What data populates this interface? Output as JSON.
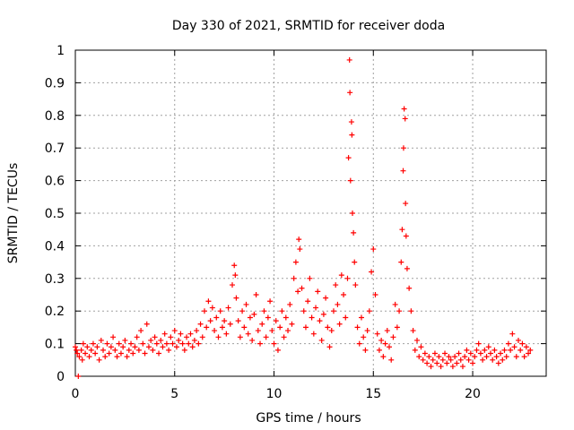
{
  "chart_data": {
    "type": "scatter",
    "title": "Day 330 of 2021, SRMTID for receiver doda",
    "xlabel": "GPS time / hours",
    "ylabel": "SRMTID / TECUs",
    "xlim": [
      0,
      23.7
    ],
    "ylim": [
      0,
      1
    ],
    "xticks": [
      0,
      5,
      10,
      15,
      20
    ],
    "yticks": [
      0,
      0.1,
      0.2,
      0.3,
      0.4,
      0.5,
      0.6,
      0.7,
      0.8,
      0.9,
      1
    ],
    "ytick_labels": [
      "0",
      "0.1",
      "0.2",
      "0.3",
      "0.4",
      "0.5",
      "0.6",
      "0.7",
      "0.8",
      "0.9",
      "1"
    ],
    "xtick_labels": [
      "0",
      "5",
      "10",
      "15",
      "20"
    ],
    "grid": true,
    "marker": "+",
    "color": "#ff0000",
    "series": [
      {
        "name": "SRMTID",
        "points": [
          [
            0.0,
            0.09
          ],
          [
            0.05,
            0.08
          ],
          [
            0.1,
            0.07
          ],
          [
            0.15,
            0.0
          ],
          [
            0.2,
            0.06
          ],
          [
            0.3,
            0.08
          ],
          [
            0.35,
            0.05
          ],
          [
            0.4,
            0.1
          ],
          [
            0.5,
            0.07
          ],
          [
            0.6,
            0.09
          ],
          [
            0.7,
            0.06
          ],
          [
            0.8,
            0.08
          ],
          [
            0.9,
            0.1
          ],
          [
            1.0,
            0.07
          ],
          [
            1.1,
            0.09
          ],
          [
            1.2,
            0.05
          ],
          [
            1.3,
            0.11
          ],
          [
            1.4,
            0.08
          ],
          [
            1.5,
            0.06
          ],
          [
            1.6,
            0.1
          ],
          [
            1.7,
            0.07
          ],
          [
            1.8,
            0.09
          ],
          [
            1.9,
            0.12
          ],
          [
            2.0,
            0.08
          ],
          [
            2.1,
            0.06
          ],
          [
            2.2,
            0.1
          ],
          [
            2.3,
            0.07
          ],
          [
            2.4,
            0.09
          ],
          [
            2.5,
            0.11
          ],
          [
            2.6,
            0.06
          ],
          [
            2.7,
            0.08
          ],
          [
            2.8,
            0.1
          ],
          [
            2.9,
            0.07
          ],
          [
            3.0,
            0.09
          ],
          [
            3.1,
            0.12
          ],
          [
            3.2,
            0.08
          ],
          [
            3.3,
            0.14
          ],
          [
            3.4,
            0.1
          ],
          [
            3.5,
            0.07
          ],
          [
            3.6,
            0.16
          ],
          [
            3.7,
            0.09
          ],
          [
            3.8,
            0.11
          ],
          [
            3.9,
            0.08
          ],
          [
            4.0,
            0.12
          ],
          [
            4.1,
            0.1
          ],
          [
            4.2,
            0.07
          ],
          [
            4.3,
            0.11
          ],
          [
            4.4,
            0.09
          ],
          [
            4.5,
            0.13
          ],
          [
            4.6,
            0.1
          ],
          [
            4.7,
            0.08
          ],
          [
            4.8,
            0.12
          ],
          [
            4.9,
            0.1
          ],
          [
            5.0,
            0.14
          ],
          [
            5.1,
            0.09
          ],
          [
            5.2,
            0.11
          ],
          [
            5.3,
            0.13
          ],
          [
            5.4,
            0.1
          ],
          [
            5.5,
            0.08
          ],
          [
            5.6,
            0.12
          ],
          [
            5.7,
            0.1
          ],
          [
            5.8,
            0.13
          ],
          [
            5.9,
            0.09
          ],
          [
            6.0,
            0.11
          ],
          [
            6.1,
            0.14
          ],
          [
            6.2,
            0.1
          ],
          [
            6.3,
            0.16
          ],
          [
            6.4,
            0.12
          ],
          [
            6.5,
            0.2
          ],
          [
            6.6,
            0.15
          ],
          [
            6.7,
            0.23
          ],
          [
            6.8,
            0.17
          ],
          [
            6.9,
            0.21
          ],
          [
            7.0,
            0.14
          ],
          [
            7.1,
            0.18
          ],
          [
            7.2,
            0.12
          ],
          [
            7.3,
            0.2
          ],
          [
            7.4,
            0.15
          ],
          [
            7.5,
            0.17
          ],
          [
            7.6,
            0.13
          ],
          [
            7.7,
            0.21
          ],
          [
            7.8,
            0.16
          ],
          [
            7.9,
            0.28
          ],
          [
            8.0,
            0.34
          ],
          [
            8.05,
            0.31
          ],
          [
            8.1,
            0.24
          ],
          [
            8.2,
            0.17
          ],
          [
            8.3,
            0.12
          ],
          [
            8.4,
            0.2
          ],
          [
            8.5,
            0.15
          ],
          [
            8.6,
            0.22
          ],
          [
            8.7,
            0.13
          ],
          [
            8.8,
            0.18
          ],
          [
            8.9,
            0.11
          ],
          [
            9.0,
            0.19
          ],
          [
            9.1,
            0.25
          ],
          [
            9.2,
            0.14
          ],
          [
            9.3,
            0.1
          ],
          [
            9.4,
            0.16
          ],
          [
            9.5,
            0.2
          ],
          [
            9.6,
            0.12
          ],
          [
            9.7,
            0.18
          ],
          [
            9.8,
            0.23
          ],
          [
            9.9,
            0.14
          ],
          [
            10.0,
            0.1
          ],
          [
            10.1,
            0.17
          ],
          [
            10.2,
            0.08
          ],
          [
            10.3,
            0.15
          ],
          [
            10.4,
            0.2
          ],
          [
            10.5,
            0.12
          ],
          [
            10.6,
            0.18
          ],
          [
            10.7,
            0.14
          ],
          [
            10.8,
            0.22
          ],
          [
            10.9,
            0.16
          ],
          [
            11.0,
            0.3
          ],
          [
            11.1,
            0.35
          ],
          [
            11.2,
            0.26
          ],
          [
            11.25,
            0.42
          ],
          [
            11.3,
            0.39
          ],
          [
            11.4,
            0.27
          ],
          [
            11.5,
            0.2
          ],
          [
            11.6,
            0.15
          ],
          [
            11.7,
            0.23
          ],
          [
            11.8,
            0.3
          ],
          [
            11.9,
            0.18
          ],
          [
            12.0,
            0.13
          ],
          [
            12.1,
            0.21
          ],
          [
            12.2,
            0.26
          ],
          [
            12.3,
            0.17
          ],
          [
            12.4,
            0.11
          ],
          [
            12.5,
            0.19
          ],
          [
            12.6,
            0.24
          ],
          [
            12.7,
            0.15
          ],
          [
            12.8,
            0.09
          ],
          [
            12.9,
            0.14
          ],
          [
            13.0,
            0.2
          ],
          [
            13.1,
            0.28
          ],
          [
            13.2,
            0.22
          ],
          [
            13.3,
            0.16
          ],
          [
            13.4,
            0.31
          ],
          [
            13.5,
            0.25
          ],
          [
            13.6,
            0.18
          ],
          [
            13.7,
            0.3
          ],
          [
            13.75,
            0.67
          ],
          [
            13.8,
            0.97
          ],
          [
            13.82,
            0.87
          ],
          [
            13.85,
            0.6
          ],
          [
            13.9,
            0.78
          ],
          [
            13.92,
            0.74
          ],
          [
            13.95,
            0.5
          ],
          [
            14.0,
            0.44
          ],
          [
            14.05,
            0.35
          ],
          [
            14.1,
            0.28
          ],
          [
            14.2,
            0.15
          ],
          [
            14.3,
            0.1
          ],
          [
            14.4,
            0.18
          ],
          [
            14.5,
            0.12
          ],
          [
            14.6,
            0.08
          ],
          [
            14.7,
            0.14
          ],
          [
            14.8,
            0.2
          ],
          [
            14.9,
            0.32
          ],
          [
            15.0,
            0.39
          ],
          [
            15.1,
            0.25
          ],
          [
            15.2,
            0.13
          ],
          [
            15.3,
            0.08
          ],
          [
            15.4,
            0.11
          ],
          [
            15.5,
            0.06
          ],
          [
            15.6,
            0.1
          ],
          [
            15.7,
            0.14
          ],
          [
            15.8,
            0.09
          ],
          [
            15.9,
            0.05
          ],
          [
            16.0,
            0.12
          ],
          [
            16.1,
            0.22
          ],
          [
            16.2,
            0.15
          ],
          [
            16.3,
            0.2
          ],
          [
            16.4,
            0.35
          ],
          [
            16.45,
            0.45
          ],
          [
            16.5,
            0.63
          ],
          [
            16.52,
            0.7
          ],
          [
            16.55,
            0.82
          ],
          [
            16.6,
            0.79
          ],
          [
            16.62,
            0.53
          ],
          [
            16.65,
            0.43
          ],
          [
            16.7,
            0.33
          ],
          [
            16.8,
            0.27
          ],
          [
            16.9,
            0.2
          ],
          [
            17.0,
            0.14
          ],
          [
            17.1,
            0.08
          ],
          [
            17.2,
            0.11
          ],
          [
            17.3,
            0.06
          ],
          [
            17.4,
            0.09
          ],
          [
            17.5,
            0.05
          ],
          [
            17.6,
            0.07
          ],
          [
            17.7,
            0.04
          ],
          [
            17.8,
            0.06
          ],
          [
            17.9,
            0.03
          ],
          [
            18.0,
            0.05
          ],
          [
            18.1,
            0.07
          ],
          [
            18.2,
            0.04
          ],
          [
            18.3,
            0.06
          ],
          [
            18.4,
            0.03
          ],
          [
            18.5,
            0.05
          ],
          [
            18.6,
            0.07
          ],
          [
            18.7,
            0.04
          ],
          [
            18.8,
            0.06
          ],
          [
            18.9,
            0.05
          ],
          [
            19.0,
            0.03
          ],
          [
            19.1,
            0.06
          ],
          [
            19.2,
            0.04
          ],
          [
            19.3,
            0.07
          ],
          [
            19.4,
            0.05
          ],
          [
            19.5,
            0.03
          ],
          [
            19.6,
            0.06
          ],
          [
            19.7,
            0.08
          ],
          [
            19.8,
            0.05
          ],
          [
            19.9,
            0.07
          ],
          [
            20.0,
            0.04
          ],
          [
            20.1,
            0.06
          ],
          [
            20.2,
            0.08
          ],
          [
            20.3,
            0.1
          ],
          [
            20.4,
            0.07
          ],
          [
            20.5,
            0.05
          ],
          [
            20.6,
            0.08
          ],
          [
            20.7,
            0.06
          ],
          [
            20.8,
            0.09
          ],
          [
            20.9,
            0.07
          ],
          [
            21.0,
            0.05
          ],
          [
            21.1,
            0.08
          ],
          [
            21.2,
            0.06
          ],
          [
            21.3,
            0.04
          ],
          [
            21.4,
            0.07
          ],
          [
            21.5,
            0.05
          ],
          [
            21.6,
            0.08
          ],
          [
            21.7,
            0.06
          ],
          [
            21.8,
            0.1
          ],
          [
            21.9,
            0.08
          ],
          [
            22.0,
            0.13
          ],
          [
            22.1,
            0.09
          ],
          [
            22.2,
            0.06
          ],
          [
            22.3,
            0.11
          ],
          [
            22.4,
            0.08
          ],
          [
            22.5,
            0.1
          ],
          [
            22.6,
            0.06
          ],
          [
            22.7,
            0.09
          ],
          [
            22.8,
            0.07
          ],
          [
            22.9,
            0.08
          ]
        ]
      }
    ]
  }
}
